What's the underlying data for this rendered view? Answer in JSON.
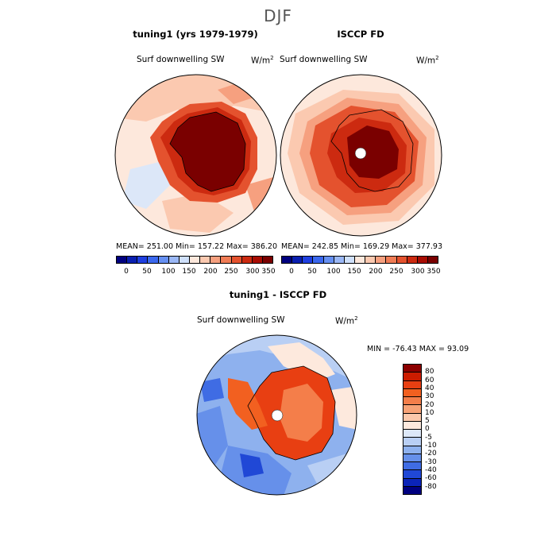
{
  "season": "DJF",
  "panels": [
    {
      "title": "tuning1 (yrs 1979-1979)",
      "variable": "Surf downwelling SW",
      "units": "W/m",
      "units_exp": "2",
      "stats": "MEAN= 251.00   Min= 157.22   Max= 386.20"
    },
    {
      "title": "ISCCP FD",
      "variable": "Surf downwelling SW",
      "units": "W/m",
      "units_exp": "2",
      "stats": "MEAN= 242.85   Min= 169.29   Max= 377.93"
    }
  ],
  "abs_colorbar": {
    "colors": [
      "#00007f",
      "#0a1fb0",
      "#1f3fe0",
      "#3b68ee",
      "#6690f2",
      "#9bb8f6",
      "#cfe0fb",
      "#fde8dc",
      "#fbc9b0",
      "#f6a07f",
      "#f07c55",
      "#e4522e",
      "#cc2a10",
      "#a80c02",
      "#7a0000"
    ],
    "ticks": [
      "0",
      "50",
      "100",
      "150",
      "200",
      "250",
      "300",
      "350"
    ]
  },
  "diff_panel": {
    "title": "tuning1 - ISCCP FD",
    "variable": "Surf downwelling SW",
    "units": "W/m",
    "units_exp": "2",
    "stats": "MIN = -76.43  MAX =  93.09"
  },
  "diff_colorbar": {
    "colors": [
      "#8c0000",
      "#cc1c00",
      "#e83f12",
      "#f26020",
      "#f47e4a",
      "#f7a276",
      "#fbc8ab",
      "#fde9dd",
      "#dde8f8",
      "#b9cff4",
      "#8eb1ee",
      "#6690ea",
      "#3f6ce4",
      "#2048d6",
      "#0b24b8",
      "#000080"
    ],
    "ticks": [
      "80",
      "60",
      "40",
      "30",
      "20",
      "10",
      "5",
      "0",
      "-5",
      "-10",
      "-20",
      "-30",
      "-40",
      "-60",
      "-80"
    ]
  }
}
